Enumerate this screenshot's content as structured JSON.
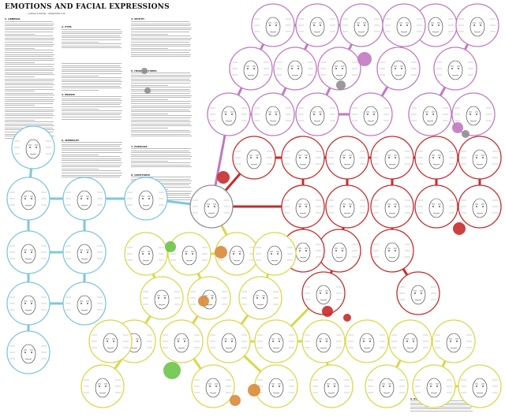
{
  "header": {
    "title": "EMOTIONS AND FACIAL EXPRESSIONS",
    "subtitle": "joshua's handy · ankarami.com"
  },
  "colors": {
    "sad": "#7fc7de",
    "fear": "#c079c2",
    "anger": "#c72b2b",
    "joy": "#d8d84c",
    "surprise": "#6cc44a",
    "disgust": "#d98b3a",
    "neutral": "#8f8f8f",
    "text": "#222222"
  },
  "sections": {
    "general": "1. GENERAL",
    "eyes": "2. EYES",
    "mouth": "3. MOUTH",
    "brows": "4. BROWS",
    "postures": "5. HEAD POSTURES",
    "wrinkles": "6. WRINKLES",
    "exercise": "7. EXERCISE",
    "questions": "8. QUESTIONS",
    "references": "9. REFERENCES"
  }
}
